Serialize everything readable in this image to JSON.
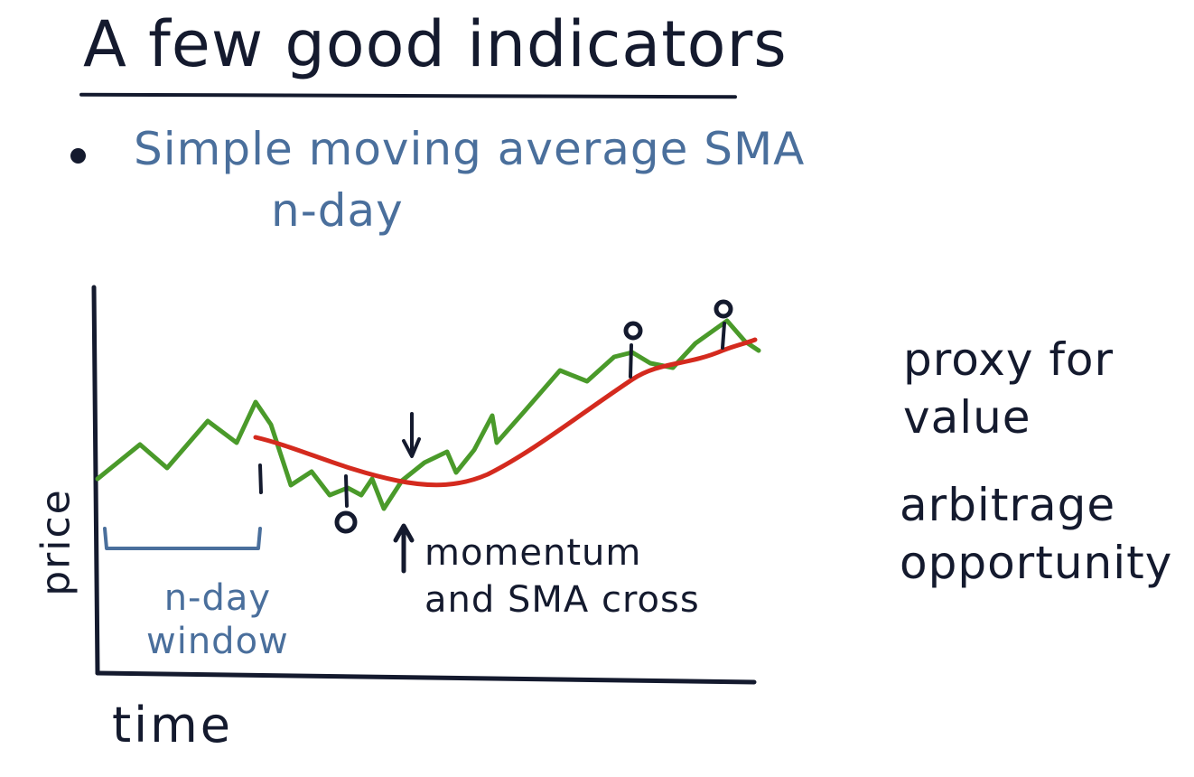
{
  "slide": {
    "title": "A few good indicators",
    "bullet": {
      "text": "Simple moving average SMA",
      "sub": "n-day"
    }
  },
  "chart_data": {
    "type": "line",
    "xlabel": "time",
    "ylabel": "price",
    "series": [
      {
        "role": "price",
        "color": "#4a9a2a"
      },
      {
        "role": "sma",
        "color": "#d42a1e"
      }
    ],
    "annotations": {
      "window_label": [
        "n-day",
        "window"
      ],
      "signal_label": [
        "momentum",
        "and SMA cross"
      ]
    }
  },
  "notes": {
    "value": [
      "proxy for",
      "value"
    ],
    "arbitrage": [
      "arbitrage",
      "opportunity"
    ]
  },
  "colors": {
    "ink": "#141a2e",
    "blue_ink": "#4a6f9c",
    "price_line": "#4a9a2a",
    "sma_line": "#d42a1e"
  }
}
